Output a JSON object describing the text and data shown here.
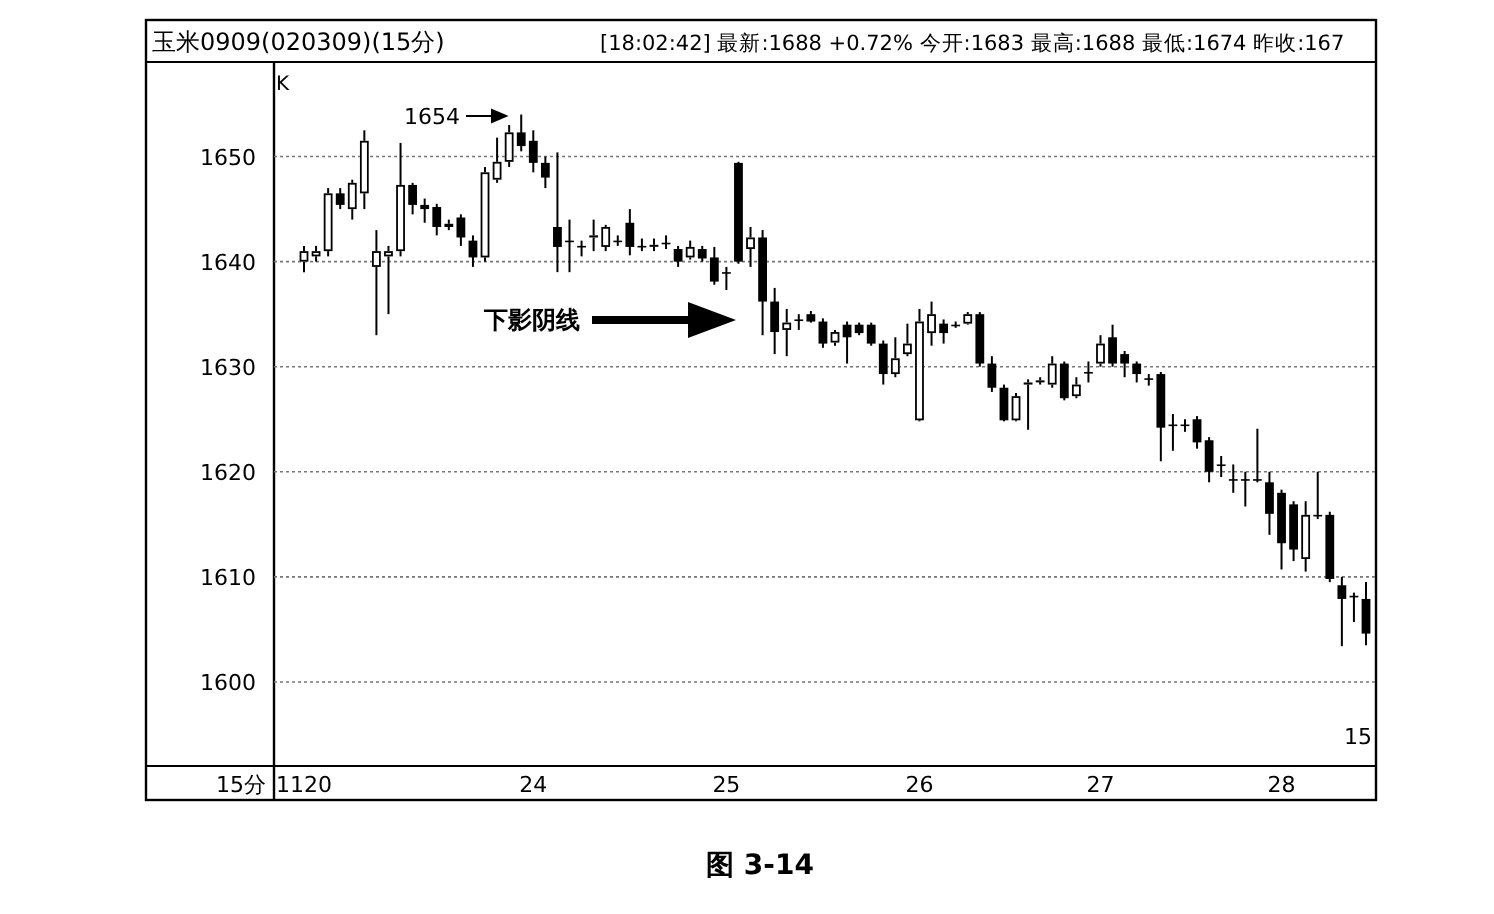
{
  "chart_data": {
    "type": "candlestick",
    "title": "玉米0909(020309)(15分)",
    "subtitle": "[18:02:42] 最新:1688 +0.72% 今开:1683 最高:1688 最低:1674 昨收:167",
    "xlabel": "15分",
    "categories": [
      "1120",
      null,
      null,
      null,
      null,
      null,
      null,
      null,
      null,
      null,
      null,
      null,
      null,
      null,
      null,
      null,
      null,
      null,
      null,
      "24",
      null,
      null,
      null,
      null,
      null,
      null,
      null,
      null,
      null,
      null,
      null,
      null,
      null,
      null,
      null,
      "25",
      null,
      null,
      null,
      null,
      null,
      null,
      null,
      null,
      null,
      null,
      null,
      null,
      null,
      null,
      null,
      "26",
      null,
      null,
      null,
      null,
      null,
      null,
      null,
      null,
      null,
      null,
      null,
      null,
      null,
      null,
      "27",
      null,
      null,
      null,
      null,
      null,
      null,
      null,
      null,
      null,
      null,
      null,
      null,
      null,
      null,
      "28",
      null,
      null,
      null,
      null,
      null,
      null,
      null
    ],
    "ohlc": [
      [
        1640,
        1641.5,
        1639,
        1641
      ],
      [
        1640.5,
        1641.5,
        1640,
        1641
      ],
      [
        1641,
        1647,
        1640.5,
        1646.5
      ],
      [
        1646.5,
        1647,
        1645,
        1645.4
      ],
      [
        1645,
        1647.8,
        1644,
        1647.5
      ],
      [
        1646.5,
        1652.5,
        1645,
        1651.5
      ],
      [
        1639.5,
        1643,
        1633,
        1641
      ],
      [
        1640.5,
        1641.5,
        1635,
        1641
      ],
      [
        1641,
        1651.3,
        1640.5,
        1647.3
      ],
      [
        1647.3,
        1647.5,
        1644.5,
        1645.4
      ],
      [
        1645.4,
        1646,
        1643.7,
        1645
      ],
      [
        1645.2,
        1645.5,
        1642.5,
        1643.3
      ],
      [
        1643.3,
        1644,
        1643,
        1643.6
      ],
      [
        1644.2,
        1644.5,
        1641.5,
        1642.3
      ],
      [
        1642,
        1642.5,
        1639.5,
        1640.4
      ],
      [
        1640.4,
        1649,
        1640,
        1648.5
      ],
      [
        1647.8,
        1651.8,
        1647.5,
        1649.5
      ],
      [
        1649.5,
        1653,
        1649,
        1652.3
      ],
      [
        1652.3,
        1654,
        1650.5,
        1651
      ],
      [
        1651.5,
        1652.5,
        1648.5,
        1649.4
      ],
      [
        1649.4,
        1650,
        1647,
        1648
      ],
      [
        1643.3,
        1650.4,
        1639,
        1641.4
      ],
      [
        1642,
        1644,
        1639,
        1642
      ],
      [
        1641.5,
        1642,
        1640.5,
        1641.5
      ],
      [
        1642.3,
        1644,
        1641,
        1642.5
      ],
      [
        1641.4,
        1643.5,
        1641,
        1643.3
      ],
      [
        1642,
        1642.5,
        1641.5,
        1642
      ],
      [
        1643.7,
        1645,
        1640.6,
        1641.4
      ],
      [
        1641.5,
        1642.2,
        1641,
        1641.5
      ],
      [
        1641.5,
        1642.2,
        1641,
        1641.6
      ],
      [
        1641.8,
        1642.5,
        1641.2,
        1641.8
      ],
      [
        1641.2,
        1641.5,
        1639.5,
        1640
      ],
      [
        1640.4,
        1642,
        1640.2,
        1641.4
      ],
      [
        1641.2,
        1641.5,
        1640,
        1640.3
      ],
      [
        1640.4,
        1641.4,
        1637.8,
        1638.1
      ],
      [
        1639,
        1639.5,
        1637.3,
        1639
      ],
      [
        1649.4,
        1649.5,
        1639.8,
        1640
      ],
      [
        1641.2,
        1643.3,
        1639.5,
        1642.3
      ],
      [
        1642.3,
        1643,
        1633,
        1636.2
      ],
      [
        1636.2,
        1637.5,
        1631.2,
        1633.3
      ],
      [
        1633.5,
        1635.5,
        1631,
        1634.2
      ],
      [
        1634.5,
        1635,
        1633.5,
        1634.5
      ],
      [
        1635,
        1635.3,
        1634.2,
        1634.3
      ],
      [
        1634.3,
        1634.6,
        1631.8,
        1632.2
      ],
      [
        1632.3,
        1633.5,
        1632,
        1633.3
      ],
      [
        1634,
        1634.3,
        1630.3,
        1632.8
      ],
      [
        1634,
        1634.2,
        1633,
        1633.2
      ],
      [
        1634,
        1634.2,
        1632,
        1632.2
      ],
      [
        1632.2,
        1632.5,
        1628.3,
        1629.3
      ],
      [
        1629.3,
        1632.8,
        1629,
        1630.8
      ],
      [
        1631.2,
        1634.1,
        1631,
        1632.2
      ],
      [
        1624.9,
        1635.5,
        1624.8,
        1634.3
      ],
      [
        1633.2,
        1636.2,
        1632,
        1635
      ],
      [
        1634.1,
        1634.5,
        1632.2,
        1633.2
      ],
      [
        1634,
        1634.3,
        1633.7,
        1634
      ],
      [
        1634.1,
        1635.2,
        1634,
        1635
      ],
      [
        1635,
        1635.2,
        1630,
        1630.3
      ],
      [
        1630.3,
        1631,
        1627.6,
        1628
      ],
      [
        1628,
        1628.3,
        1624.8,
        1624.9
      ],
      [
        1624.9,
        1627.5,
        1624.8,
        1627.2
      ],
      [
        1628.3,
        1628.8,
        1624,
        1628.5
      ],
      [
        1628.6,
        1629,
        1628.3,
        1628.7
      ],
      [
        1628.3,
        1631,
        1628,
        1630.3
      ],
      [
        1630.3,
        1630.5,
        1626.8,
        1627
      ],
      [
        1627.2,
        1629,
        1627,
        1628.3
      ],
      [
        1629.5,
        1630.5,
        1628.5,
        1629.5
      ],
      [
        1630.3,
        1633,
        1630,
        1632.2
      ],
      [
        1632.8,
        1634,
        1630,
        1630.3
      ],
      [
        1631.2,
        1631.5,
        1629,
        1630.3
      ],
      [
        1630.3,
        1630.5,
        1628.5,
        1629.3
      ],
      [
        1628.9,
        1629.3,
        1628.2,
        1628.9
      ],
      [
        1629.3,
        1629.5,
        1621,
        1624.2
      ],
      [
        1624.5,
        1625.5,
        1622,
        1624.5
      ],
      [
        1624.5,
        1625,
        1623.8,
        1624.5
      ],
      [
        1625,
        1625.3,
        1622.2,
        1622.8
      ],
      [
        1623,
        1623.3,
        1619,
        1620
      ],
      [
        1620.7,
        1621.5,
        1619.5,
        1620.7
      ],
      [
        1619.3,
        1620.7,
        1618,
        1619.3
      ],
      [
        1619.3,
        1620,
        1616.7,
        1619.3
      ],
      [
        1619.3,
        1624.1,
        1619,
        1619.3
      ],
      [
        1619,
        1620,
        1614,
        1616
      ],
      [
        1618,
        1618.3,
        1610.7,
        1613.2
      ],
      [
        1616.9,
        1617.2,
        1611.5,
        1612.6
      ],
      [
        1611.7,
        1617.2,
        1610.5,
        1615.9
      ],
      [
        1615.9,
        1620,
        1615.5,
        1615.9
      ],
      [
        1615.9,
        1616.2,
        1609.5,
        1609.8
      ],
      [
        1609.2,
        1610,
        1603.4,
        1607.9
      ],
      [
        1608.2,
        1608.5,
        1605.7,
        1608.2
      ],
      [
        1607.9,
        1609.5,
        1603.5,
        1604.6
      ]
    ],
    "ylim": [
      1592,
      1659
    ],
    "yticks": [
      1600,
      1610,
      1620,
      1630,
      1640,
      1650
    ],
    "grid": "y",
    "annotations": [
      "1654",
      "下影阴线",
      "K",
      "15",
      "图 3-14"
    ]
  }
}
